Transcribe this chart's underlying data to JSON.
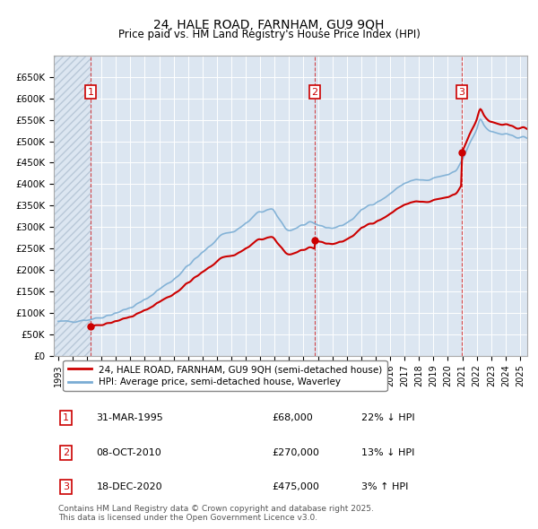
{
  "title": "24, HALE ROAD, FARNHAM, GU9 9QH",
  "subtitle": "Price paid vs. HM Land Registry's House Price Index (HPI)",
  "legend_line1": "24, HALE ROAD, FARNHAM, GU9 9QH (semi-detached house)",
  "legend_line2": "HPI: Average price, semi-detached house, Waverley",
  "footer": "Contains HM Land Registry data © Crown copyright and database right 2025.\nThis data is licensed under the Open Government Licence v3.0.",
  "sale_color": "#cc0000",
  "hpi_color": "#7aadd4",
  "background_color": "#dce6f1",
  "plot_bg_color": "#dce6f1",
  "ylim": [
    0,
    700000
  ],
  "yticks": [
    0,
    50000,
    100000,
    150000,
    200000,
    250000,
    300000,
    350000,
    400000,
    450000,
    500000,
    550000,
    600000,
    650000
  ],
  "xlim_start": 1992.7,
  "xlim_end": 2025.5,
  "sales": [
    {
      "year": 1995.24,
      "price": 68000,
      "label": "1"
    },
    {
      "year": 2010.77,
      "price": 270000,
      "label": "2"
    },
    {
      "year": 2020.97,
      "price": 475000,
      "label": "3"
    }
  ],
  "annotations": [
    {
      "label": "1",
      "date": "31-MAR-1995",
      "price": "£68,000",
      "pct": "22% ↓ HPI"
    },
    {
      "label": "2",
      "date": "08-OCT-2010",
      "price": "£270,000",
      "pct": "13% ↓ HPI"
    },
    {
      "label": "3",
      "date": "18-DEC-2020",
      "price": "£475,000",
      "pct": "3% ↑ HPI"
    }
  ],
  "hpi_base_year": 1995.24,
  "hpi_base_value": 87500,
  "sale1_price": 68000,
  "sale2_price": 270000,
  "sale3_price": 475000,
  "sale1_year": 1995.24,
  "sale2_year": 2010.77,
  "sale3_year": 2020.97
}
